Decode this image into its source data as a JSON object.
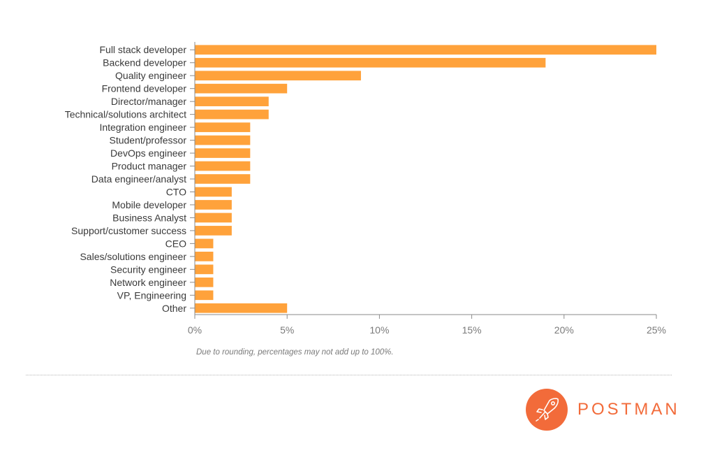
{
  "chart_data": {
    "type": "bar",
    "orientation": "horizontal",
    "categories": [
      "Full stack developer",
      "Backend developer",
      "Quality engineer",
      "Frontend developer",
      "Director/manager",
      "Technical/solutions architect",
      "Integration engineer",
      "Student/professor",
      "DevOps engineer",
      "Product manager",
      "Data engineer/analyst",
      "CTO",
      "Mobile developer",
      "Business Analyst",
      "Support/customer success",
      "CEO",
      "Sales/solutions engineer",
      "Security engineer",
      "Network engineer",
      "VP, Engineering",
      "Other"
    ],
    "values": [
      25,
      19,
      9,
      5,
      4,
      4,
      3,
      3,
      3,
      3,
      3,
      2,
      2,
      2,
      2,
      1,
      1,
      1,
      1,
      1,
      5
    ],
    "x_ticks": [
      "0%",
      "5%",
      "10%",
      "15%",
      "20%",
      "25%"
    ],
    "x_tick_values": [
      0,
      5,
      10,
      15,
      20,
      25
    ],
    "xlim": [
      0,
      25
    ],
    "unit": "%",
    "bar_color": "#ffa23b",
    "grid": false,
    "legend": "none"
  },
  "footnote": "Due to rounding, percentages may not add up to 100%.",
  "brand": {
    "name": "POSTMAN",
    "color": "#f26b3a",
    "logo_icon": "postman-rocket-icon"
  }
}
